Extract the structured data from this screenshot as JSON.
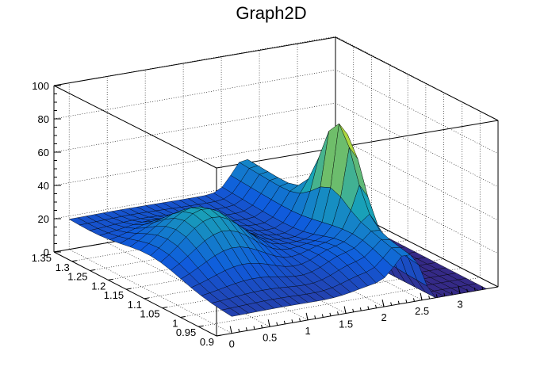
{
  "chart_data": {
    "type": "surface",
    "title": "Graph2D",
    "z_ticks": [
      "0",
      "20",
      "40",
      "60",
      "80",
      "100"
    ],
    "z_range": [
      0,
      100
    ],
    "x_ticks": [
      "0",
      "0.5",
      "1",
      "1.5",
      "2",
      "2.5",
      "3"
    ],
    "x_range": [
      -0.2,
      3.5
    ],
    "y_ticks": [
      "0.9",
      "0.95",
      "1",
      "1.05",
      "1.1",
      "1.15",
      "1.2",
      "1.25",
      "1.3",
      "1.35"
    ],
    "y_range": [
      0.9,
      1.35
    ],
    "palette": "kBird",
    "colors": {
      "low": "#352a87",
      "mid1": "#0f5cdd",
      "mid2": "#1aa7b4",
      "mid3": "#80c25c",
      "high": "#f9fb0e"
    },
    "surface": {
      "note_visible_features": "broad hump ~45 near x 0.5-1, y 1.05-1.1; sharp peak ~92 near x 2.4, y 1.1; drops to 0 for x > 2.6",
      "peaks": [
        {
          "x": 0.7,
          "y": 1.12,
          "z": 45
        },
        {
          "x": 2.4,
          "y": 1.1,
          "z": 92
        }
      ],
      "zero_region_x_min": 2.65
    }
  }
}
